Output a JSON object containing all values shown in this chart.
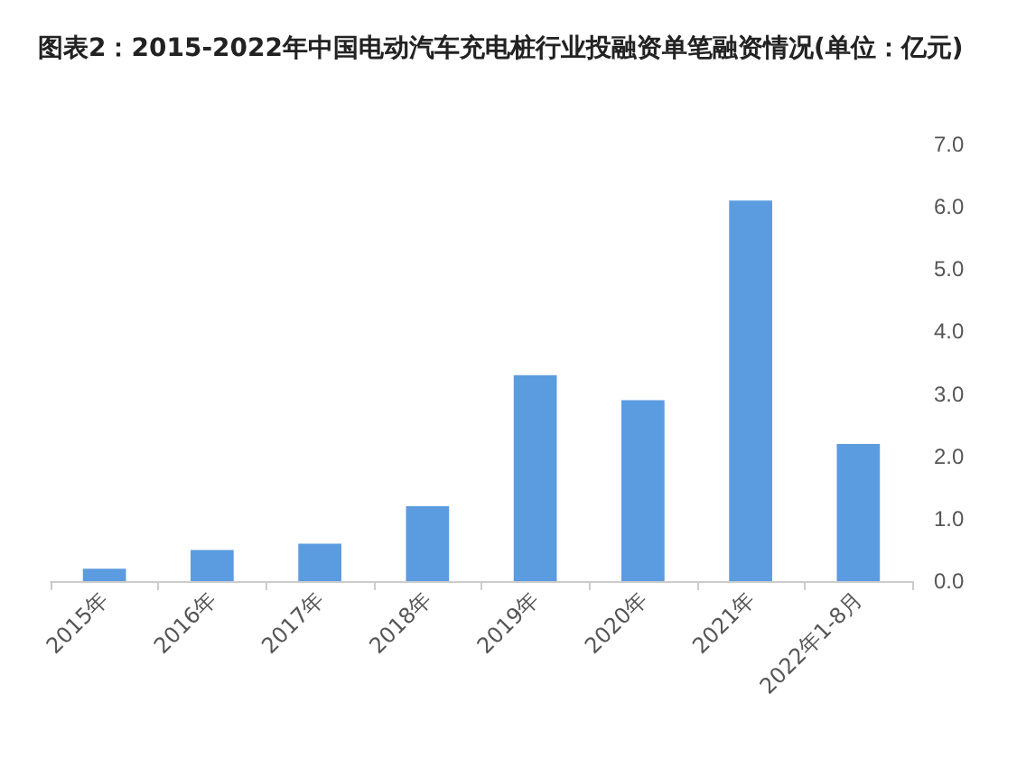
{
  "chart_data": {
    "type": "bar",
    "title": "图表2：2015-2022年中国电动汽车充电桩行业投融资单笔融资情况(单位：亿元)",
    "categories": [
      "2015年",
      "2016年",
      "2017年",
      "2018年",
      "2019年",
      "2020年",
      "2021年",
      "2022年1-8月"
    ],
    "values": [
      0.2,
      0.5,
      0.6,
      1.2,
      3.3,
      2.9,
      6.1,
      2.2
    ],
    "color": "#5b9be0",
    "ylim": [
      0,
      7
    ],
    "yticks": [
      {
        "value": 0,
        "label": "0.0"
      },
      {
        "value": 1,
        "label": "1.0"
      },
      {
        "value": 2,
        "label": "2.0"
      },
      {
        "value": 3,
        "label": "3.0"
      },
      {
        "value": 4,
        "label": "4.0"
      },
      {
        "value": 5,
        "label": "5.0"
      },
      {
        "value": 6,
        "label": "6.0"
      },
      {
        "value": 7,
        "label": "7.0"
      }
    ],
    "grid": false
  }
}
